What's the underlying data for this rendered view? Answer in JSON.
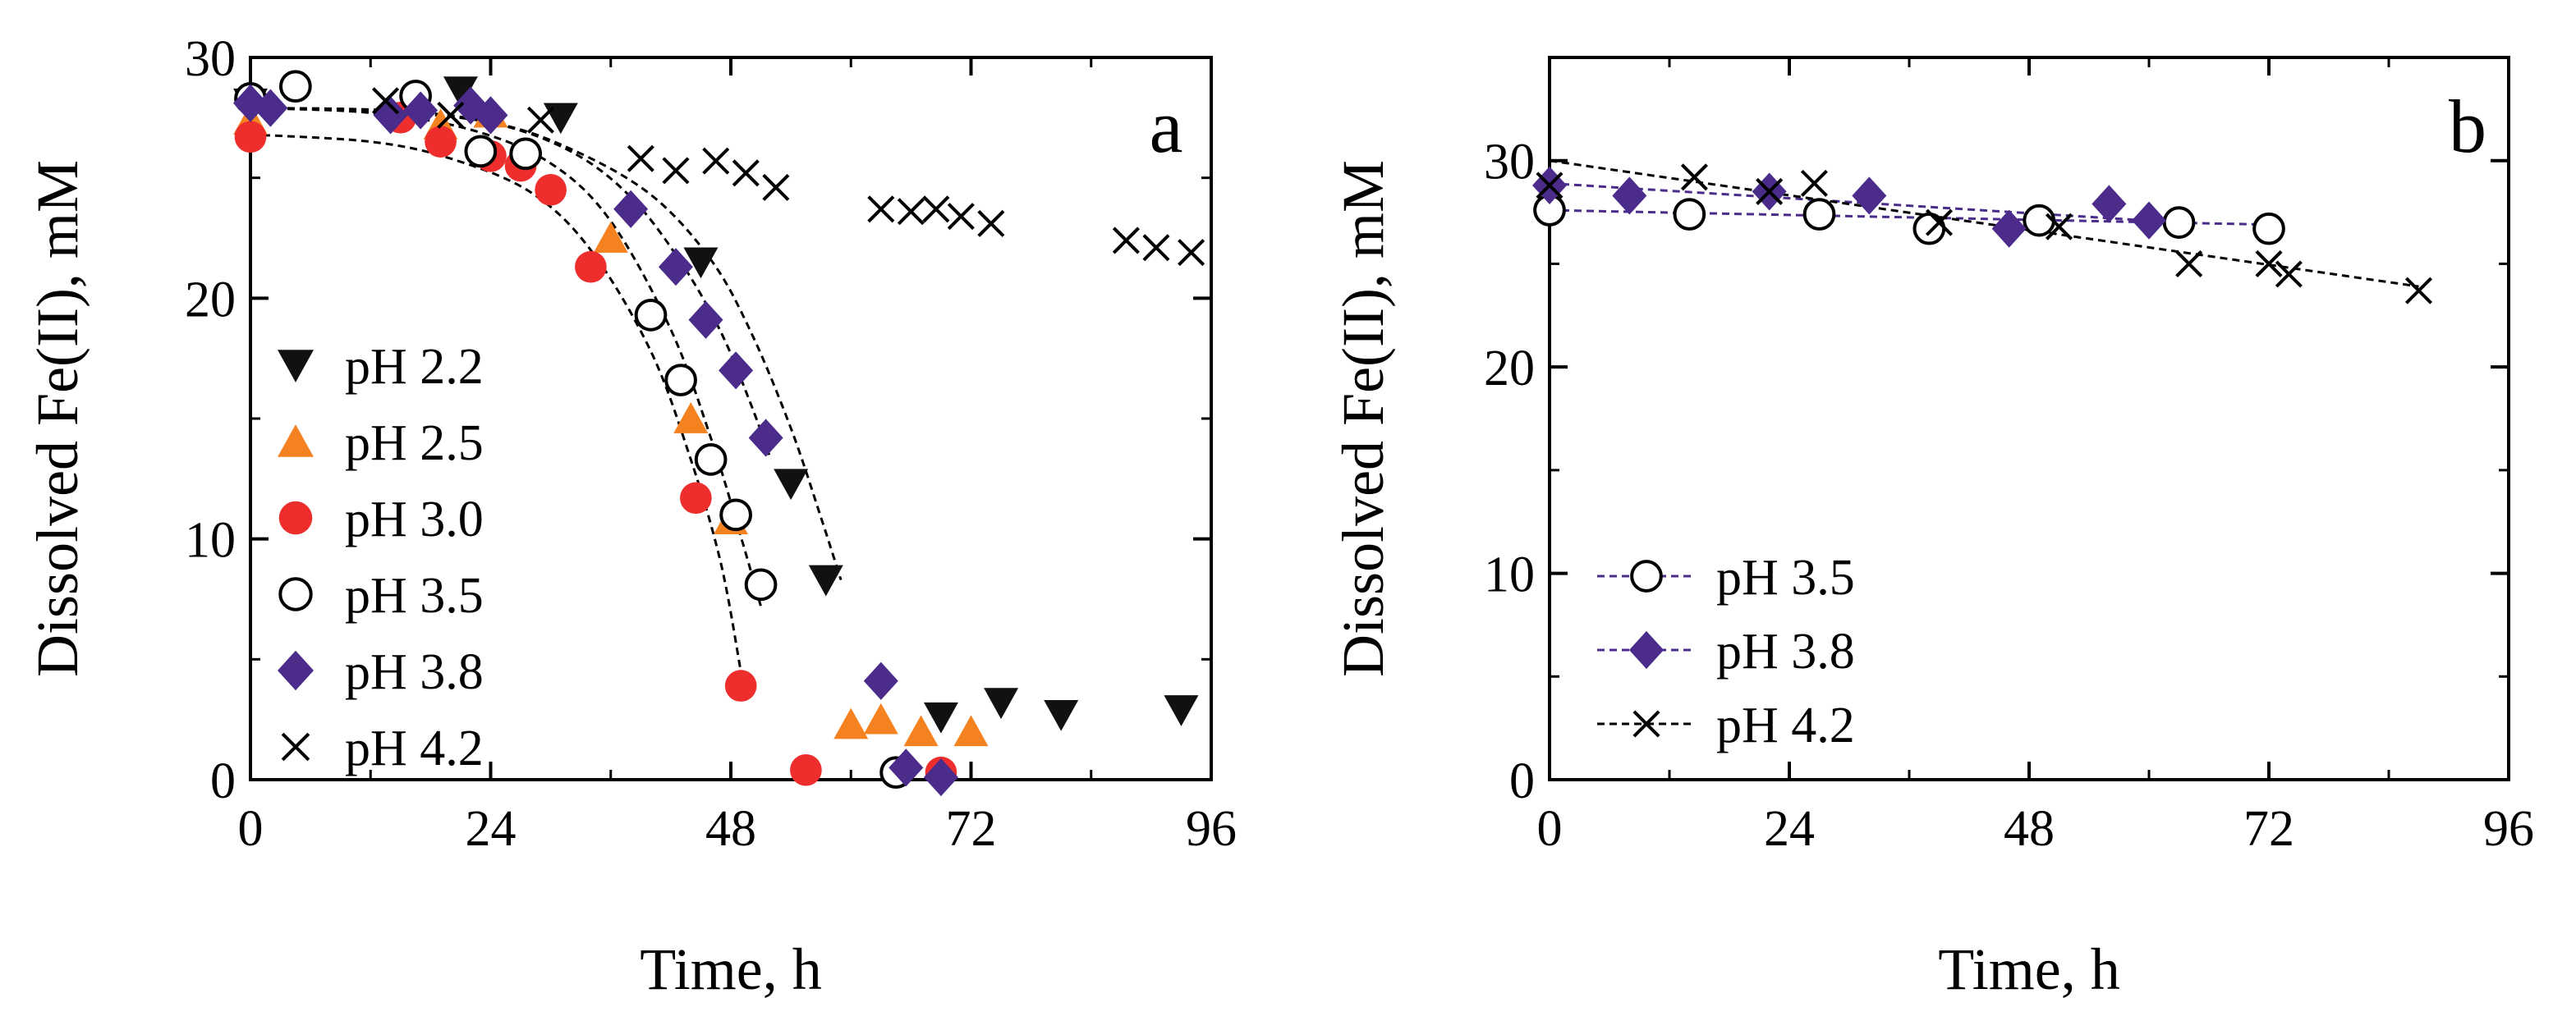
{
  "chart_data": [
    {
      "type": "scatter",
      "panel_label": "a",
      "xlabel": "Time, h",
      "ylabel": "Dissolved Fe(II), mM",
      "xlim": [
        0,
        96
      ],
      "ylim": [
        0,
        30
      ],
      "xticks": [
        0,
        24,
        48,
        72,
        96
      ],
      "yticks": [
        0,
        10,
        20,
        30
      ],
      "legend_position": "lower-left",
      "series": [
        {
          "name": "pH 2.2",
          "marker": "triangle-down",
          "color": "#111111",
          "fit": true,
          "fit_points": [
            [
              0,
              27.9
            ],
            [
              12,
              27.8
            ],
            [
              24,
              27.3
            ],
            [
              32,
              26.2
            ],
            [
              40,
              24.3
            ],
            [
              46,
              21.6
            ],
            [
              50,
              18.6
            ],
            [
              54,
              14.6
            ],
            [
              57,
              10.9
            ],
            [
              59,
              8.3
            ]
          ],
          "points": [
            [
              0,
              28.1
            ],
            [
              21,
              28.6
            ],
            [
              31,
              27.5
            ],
            [
              45,
              21.5
            ],
            [
              54,
              12.3
            ],
            [
              57.5,
              8.3
            ],
            [
              69,
              2.6
            ],
            [
              75,
              3.2
            ],
            [
              81,
              2.7
            ],
            [
              93,
              2.9
            ]
          ]
        },
        {
          "name": "pH 2.5",
          "marker": "triangle-up",
          "color": "#F58220",
          "fit": false,
          "points": [
            [
              0,
              27.4
            ],
            [
              19,
              27.2
            ],
            [
              24,
              27.7
            ],
            [
              36,
              22.5
            ],
            [
              44,
              15.0
            ],
            [
              48,
              10.8
            ],
            [
              60,
              2.3
            ],
            [
              63,
              2.5
            ],
            [
              67,
              2.0
            ],
            [
              72,
              2.0
            ]
          ],
          "fit_points": []
        },
        {
          "name": "pH 3.0",
          "marker": "circle-filled",
          "color": "#EE2D2D",
          "fit": true,
          "fit_points": [
            [
              0,
              26.8
            ],
            [
              12,
              26.5
            ],
            [
              20,
              25.8
            ],
            [
              28,
              24.4
            ],
            [
              34,
              22.0
            ],
            [
              40,
              17.8
            ],
            [
              44,
              13.3
            ],
            [
              47,
              9.0
            ],
            [
              49,
              4.5
            ]
          ],
          "points": [
            [
              0,
              26.7
            ],
            [
              15,
              27.5
            ],
            [
              19,
              26.5
            ],
            [
              24,
              25.9
            ],
            [
              27,
              25.5
            ],
            [
              30,
              24.5
            ],
            [
              34,
              21.3
            ],
            [
              44.5,
              11.7
            ],
            [
              49,
              3.9
            ],
            [
              55.5,
              0.4
            ],
            [
              69,
              0.3
            ]
          ]
        },
        {
          "name": "pH 3.5",
          "marker": "circle-open",
          "color": "#000000",
          "fit": true,
          "fit_points": [
            [
              0,
              27.9
            ],
            [
              12,
              27.7
            ],
            [
              22,
              27.0
            ],
            [
              30,
              25.6
            ],
            [
              36,
              23.2
            ],
            [
              42,
              18.7
            ],
            [
              46,
              14.2
            ],
            [
              49,
              10.1
            ],
            [
              51,
              7.2
            ]
          ],
          "points": [
            [
              0,
              28.3
            ],
            [
              4.5,
              28.8
            ],
            [
              16.5,
              28.4
            ],
            [
              23,
              26.1
            ],
            [
              27.5,
              26.0
            ],
            [
              40,
              19.3
            ],
            [
              43,
              16.6
            ],
            [
              46,
              13.3
            ],
            [
              48.5,
              11.0
            ],
            [
              51,
              8.1
            ],
            [
              64.5,
              0.3
            ]
          ]
        },
        {
          "name": "pH 3.8",
          "marker": "diamond",
          "color": "#4B2C8A",
          "fit": true,
          "fit_points": [
            [
              0,
              27.9
            ],
            [
              14,
              27.8
            ],
            [
              24,
              27.3
            ],
            [
              32,
              26.1
            ],
            [
              38,
              24.2
            ],
            [
              43,
              21.5
            ],
            [
              47,
              18.6
            ],
            [
              50,
              15.6
            ],
            [
              52,
              13.3
            ]
          ],
          "points": [
            [
              0,
              28.1
            ],
            [
              2,
              27.9
            ],
            [
              14,
              27.6
            ],
            [
              17,
              27.8
            ],
            [
              22,
              28.0
            ],
            [
              24,
              27.6
            ],
            [
              38,
              23.7
            ],
            [
              42.5,
              21.3
            ],
            [
              45.5,
              19.1
            ],
            [
              48.5,
              17.0
            ],
            [
              51.5,
              14.2
            ],
            [
              63,
              4.1
            ],
            [
              65.5,
              0.5
            ],
            [
              69,
              0.1
            ]
          ]
        },
        {
          "name": "pH 4.2",
          "marker": "x",
          "color": "#000000",
          "fit": false,
          "fit_points": [],
          "points": [
            [
              13.5,
              28.2
            ],
            [
              20,
              27.6
            ],
            [
              29,
              27.4
            ],
            [
              39,
              25.8
            ],
            [
              42.5,
              25.3
            ],
            [
              46.5,
              25.7
            ],
            [
              49.5,
              25.2
            ],
            [
              52.5,
              24.6
            ],
            [
              63,
              23.7
            ],
            [
              66,
              23.6
            ],
            [
              68.5,
              23.7
            ],
            [
              71,
              23.4
            ],
            [
              74,
              23.1
            ],
            [
              87.5,
              22.4
            ],
            [
              90.5,
              22.1
            ],
            [
              94,
              21.9
            ]
          ]
        }
      ]
    },
    {
      "type": "scatter",
      "panel_label": "b",
      "xlabel": "Time, h",
      "ylabel": "Dissolved Fe(II), mM",
      "xlim": [
        0,
        96
      ],
      "ylim": [
        0,
        35
      ],
      "xticks": [
        0,
        24,
        48,
        72,
        96
      ],
      "yticks": [
        0,
        10,
        20,
        30
      ],
      "legend_position": "lower-left",
      "series": [
        {
          "name": "pH 3.5",
          "marker": "circle-open",
          "color": "#000000",
          "line_color": "#4B2C8A",
          "fit": true,
          "fit_points": [
            [
              0,
              27.6
            ],
            [
              72,
              26.9
            ]
          ],
          "points": [
            [
              0,
              27.6
            ],
            [
              14,
              27.4
            ],
            [
              27,
              27.4
            ],
            [
              38,
              26.7
            ],
            [
              49,
              27.1
            ],
            [
              63,
              27.0
            ],
            [
              72,
              26.7
            ]
          ]
        },
        {
          "name": "pH 3.8",
          "marker": "diamond",
          "color": "#4B2C8A",
          "line_color": "#4B2C8A",
          "fit": true,
          "fit_points": [
            [
              0,
              28.9
            ],
            [
              63,
              27.0
            ]
          ],
          "points": [
            [
              0,
              28.8
            ],
            [
              8,
              28.3
            ],
            [
              22,
              28.5
            ],
            [
              32,
              28.3
            ],
            [
              46,
              26.7
            ],
            [
              56,
              27.9
            ],
            [
              60,
              27.1
            ]
          ]
        },
        {
          "name": "pH 4.2",
          "marker": "x",
          "color": "#000000",
          "line_color": "#000000",
          "fit": true,
          "fit_points": [
            [
              0,
              30.0
            ],
            [
              87,
              23.9
            ]
          ],
          "points": [
            [
              0,
              28.8
            ],
            [
              14.5,
              29.2
            ],
            [
              22,
              28.5
            ],
            [
              26.5,
              28.9
            ],
            [
              39,
              27.0
            ],
            [
              51,
              26.8
            ],
            [
              64,
              25.0
            ],
            [
              72,
              25.0
            ],
            [
              74,
              24.5
            ],
            [
              87,
              23.7
            ]
          ]
        }
      ]
    }
  ]
}
